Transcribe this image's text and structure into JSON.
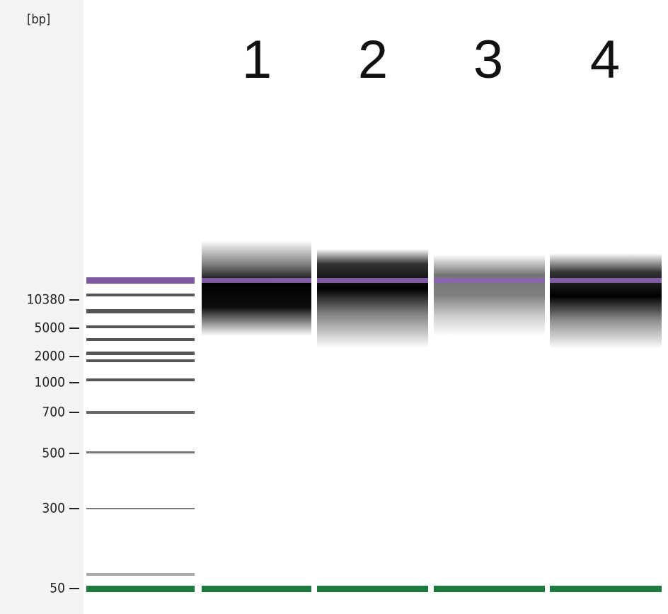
{
  "unit_label": "[bp]",
  "lanes": [
    "1",
    "2",
    "3",
    "4"
  ],
  "ladder_labels": [
    "10380",
    "5000",
    "2000",
    "1000",
    "700",
    "500",
    "300",
    "50"
  ]
}
